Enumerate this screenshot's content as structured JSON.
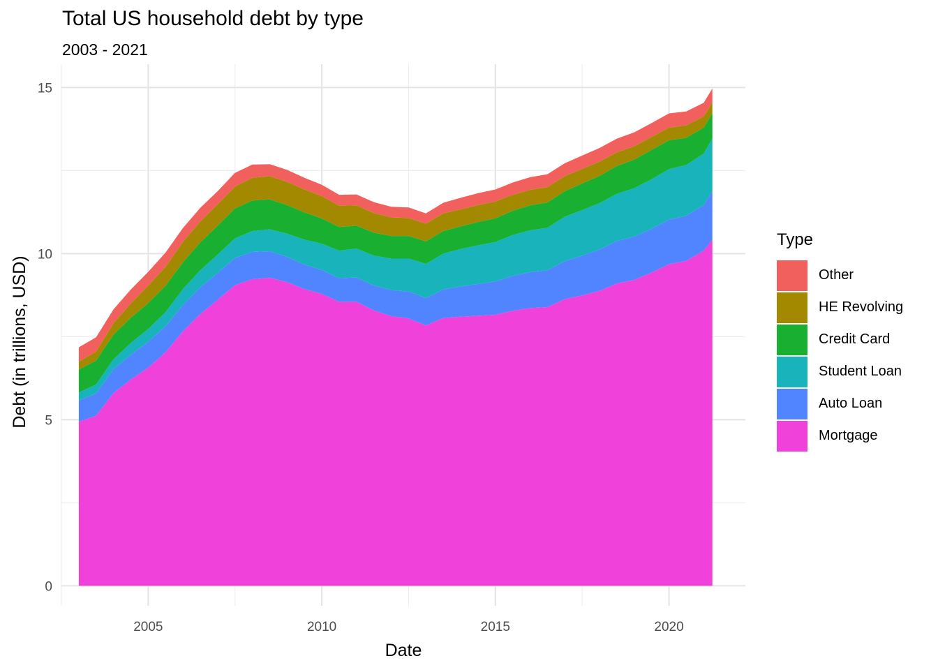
{
  "chart_data": {
    "type": "area",
    "stacked": true,
    "title": "Total US household debt by type",
    "subtitle": "2003 - 2021",
    "xlabel": "Date",
    "ylabel": "Debt (in trillions, USD)",
    "xlim": [
      2002.5,
      2022.2
    ],
    "ylim": [
      -0.6,
      15.7
    ],
    "xticks": [
      2005,
      2010,
      2015,
      2020
    ],
    "yticks": [
      0,
      5,
      10,
      15
    ],
    "x_minor_ticks": [
      2002.5,
      2007.5,
      2012.5,
      2017.5
    ],
    "y_minor_ticks": [
      2.5,
      7.5,
      12.5
    ],
    "grid": true,
    "legend_title": "Type",
    "legend_position": "right",
    "x": [
      2003.0,
      2003.5,
      2004.0,
      2004.5,
      2005.0,
      2005.5,
      2006.0,
      2006.5,
      2007.0,
      2007.5,
      2008.0,
      2008.5,
      2009.0,
      2009.5,
      2010.0,
      2010.5,
      2011.0,
      2011.5,
      2012.0,
      2012.5,
      2013.0,
      2013.5,
      2014.0,
      2014.5,
      2015.0,
      2015.5,
      2016.0,
      2016.5,
      2017.0,
      2017.5,
      2018.0,
      2018.5,
      2019.0,
      2019.5,
      2020.0,
      2020.5,
      2021.0,
      2021.25
    ],
    "series": [
      {
        "name": "Mortgage",
        "color": "#F042DA",
        "values": [
          4.94,
          5.12,
          5.8,
          6.21,
          6.57,
          7.03,
          7.66,
          8.18,
          8.61,
          9.05,
          9.23,
          9.27,
          9.14,
          8.93,
          8.79,
          8.55,
          8.55,
          8.29,
          8.12,
          8.05,
          7.84,
          8.06,
          8.1,
          8.13,
          8.16,
          8.28,
          8.36,
          8.39,
          8.63,
          8.74,
          8.88,
          9.1,
          9.21,
          9.43,
          9.68,
          9.78,
          10.09,
          10.42
        ]
      },
      {
        "name": "Auto Loan",
        "color": "#5085FF",
        "values": [
          0.64,
          0.67,
          0.72,
          0.75,
          0.77,
          0.78,
          0.79,
          0.8,
          0.81,
          0.82,
          0.82,
          0.8,
          0.76,
          0.74,
          0.72,
          0.71,
          0.73,
          0.75,
          0.78,
          0.81,
          0.82,
          0.86,
          0.91,
          0.96,
          1.0,
          1.05,
          1.08,
          1.11,
          1.14,
          1.2,
          1.24,
          1.28,
          1.3,
          1.32,
          1.34,
          1.36,
          1.37,
          1.46
        ]
      },
      {
        "name": "Student Loan",
        "color": "#19B3BB",
        "values": [
          0.24,
          0.27,
          0.3,
          0.35,
          0.39,
          0.43,
          0.48,
          0.52,
          0.55,
          0.59,
          0.63,
          0.66,
          0.7,
          0.75,
          0.79,
          0.83,
          0.87,
          0.9,
          0.95,
          0.99,
          1.03,
          1.08,
          1.13,
          1.16,
          1.19,
          1.23,
          1.26,
          1.28,
          1.34,
          1.37,
          1.4,
          1.42,
          1.46,
          1.49,
          1.52,
          1.53,
          1.55,
          1.58
        ]
      },
      {
        "name": "Credit Card",
        "color": "#19AF30",
        "values": [
          0.69,
          0.72,
          0.74,
          0.76,
          0.78,
          0.79,
          0.81,
          0.84,
          0.87,
          0.9,
          0.92,
          0.9,
          0.86,
          0.82,
          0.76,
          0.71,
          0.69,
          0.69,
          0.68,
          0.68,
          0.68,
          0.68,
          0.68,
          0.7,
          0.71,
          0.73,
          0.75,
          0.76,
          0.77,
          0.8,
          0.82,
          0.84,
          0.86,
          0.88,
          0.87,
          0.82,
          0.78,
          0.77
        ]
      },
      {
        "name": "HE Revolving",
        "color": "#A38900",
        "values": [
          0.24,
          0.27,
          0.34,
          0.43,
          0.53,
          0.57,
          0.61,
          0.63,
          0.64,
          0.66,
          0.68,
          0.7,
          0.7,
          0.69,
          0.67,
          0.64,
          0.61,
          0.59,
          0.56,
          0.54,
          0.53,
          0.53,
          0.51,
          0.51,
          0.51,
          0.48,
          0.47,
          0.46,
          0.45,
          0.44,
          0.43,
          0.41,
          0.4,
          0.39,
          0.38,
          0.37,
          0.34,
          0.32
        ]
      },
      {
        "name": "Other",
        "color": "#F2605E",
        "values": [
          0.43,
          0.43,
          0.42,
          0.42,
          0.41,
          0.43,
          0.42,
          0.41,
          0.4,
          0.41,
          0.4,
          0.36,
          0.36,
          0.35,
          0.34,
          0.33,
          0.33,
          0.33,
          0.32,
          0.32,
          0.31,
          0.32,
          0.35,
          0.36,
          0.36,
          0.37,
          0.38,
          0.39,
          0.39,
          0.4,
          0.41,
          0.41,
          0.42,
          0.42,
          0.43,
          0.42,
          0.41,
          0.42
        ]
      }
    ],
    "legend_order": [
      "Other",
      "HE Revolving",
      "Credit Card",
      "Student Loan",
      "Auto Loan",
      "Mortgage"
    ]
  }
}
